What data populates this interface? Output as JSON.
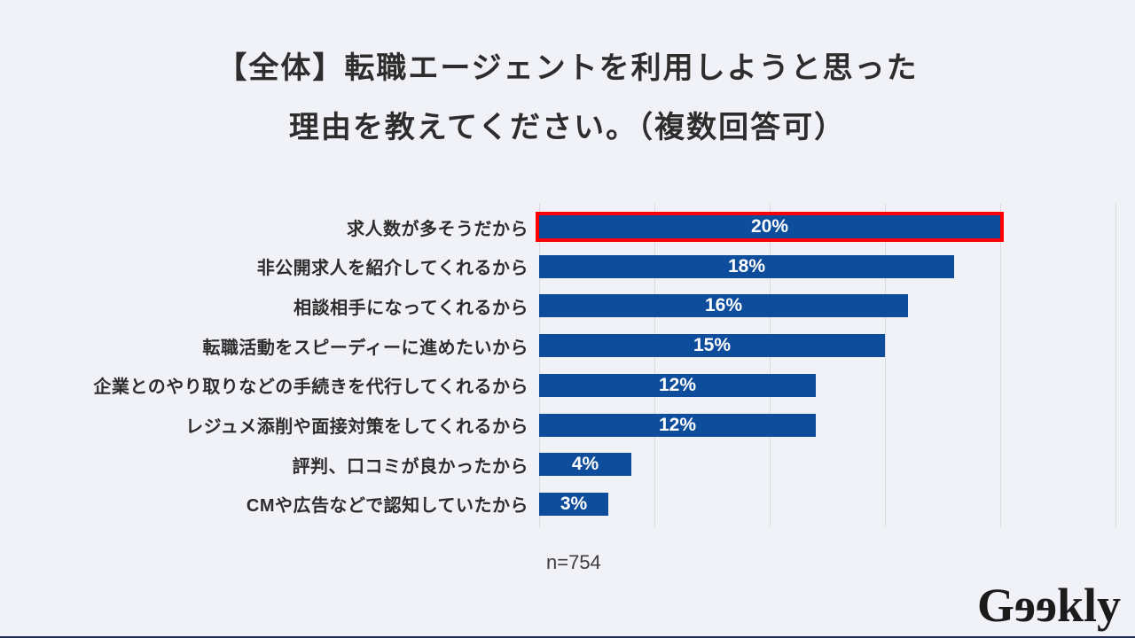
{
  "page": {
    "background_color": "#f1f2f7",
    "bottom_bar_color": "#212d52"
  },
  "title": {
    "line1": "【全体】転職エージェントを利用しようと思った",
    "line2": "理由を教えてください。（複数回答可）"
  },
  "chart_data": {
    "type": "bar",
    "orientation": "horizontal",
    "title": "【全体】転職エージェントを利用しようと思った理由を教えてください。（複数回答可）",
    "categories": [
      "求人数が多そうだから",
      "非公開求人を紹介してくれるから",
      "相談相手になってくれるから",
      "転職活動をスピーディーに進めたいから",
      "企業とのやり取りなどの手続きを代行してくれるから",
      "レジュメ添削や面接対策をしてくれるから",
      "評判、口コミが良かったから",
      "CMや広告などで認知していたから"
    ],
    "values": [
      20,
      18,
      16,
      15,
      12,
      12,
      4,
      3
    ],
    "value_labels": [
      "20%",
      "18%",
      "16%",
      "15%",
      "12%",
      "12%",
      "4%",
      "3%"
    ],
    "highlighted_index": 0,
    "highlight_border_color": "#ff0000",
    "bar_color": "#0d4d9c",
    "value_label_color": "#ffffff",
    "xlabel": "",
    "ylabel": "",
    "xlim": [
      0,
      25
    ],
    "gridline_interval": 5,
    "grid": true,
    "gridline_color": "#d9dade",
    "legend": false
  },
  "footnote": {
    "sample_size": "n=754"
  },
  "logo": {
    "name": "Geekly",
    "part_g": "G",
    "part_ee_mirrored": "ee",
    "part_kly": "kly"
  }
}
